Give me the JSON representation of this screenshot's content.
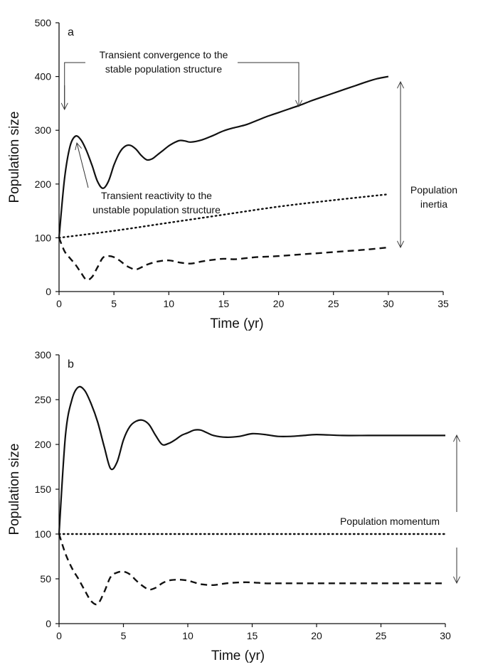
{
  "chart_data": [
    {
      "type": "line",
      "panel_label": "a",
      "xlabel": "Time (yr)",
      "ylabel": "Population size",
      "xlim": [
        0,
        35
      ],
      "ylim": [
        0,
        500
      ],
      "xticks": [
        0,
        5,
        10,
        15,
        20,
        25,
        30,
        35
      ],
      "yticks": [
        0,
        100,
        200,
        300,
        400,
        500
      ],
      "grid": false,
      "series": [
        {
          "style": "solid",
          "x": [
            0,
            0.5,
            1,
            1.5,
            2,
            2.5,
            3,
            3.5,
            4,
            4.5,
            5,
            5.5,
            6,
            6.5,
            7,
            7.5,
            8,
            8.5,
            9,
            9.5,
            10,
            10.5,
            11,
            11.5,
            12,
            13,
            14,
            15,
            16,
            17,
            18,
            19,
            20,
            21,
            22,
            23,
            24,
            25,
            26,
            27,
            28,
            29,
            30
          ],
          "y": [
            100,
            210,
            270,
            289,
            282,
            262,
            235,
            205,
            192,
            205,
            235,
            258,
            270,
            272,
            265,
            253,
            245,
            247,
            255,
            263,
            271,
            277,
            281,
            280,
            278,
            282,
            290,
            299,
            305,
            310,
            318,
            326,
            333,
            340,
            347,
            355,
            362,
            369,
            376,
            383,
            390,
            396,
            400
          ]
        },
        {
          "style": "dotted",
          "x": [
            0,
            5,
            10,
            15,
            20,
            25,
            30
          ],
          "y": [
            100,
            113,
            128,
            143,
            158,
            170,
            181
          ]
        },
        {
          "style": "dashed",
          "x": [
            0,
            0.5,
            1,
            1.5,
            2,
            2.5,
            3,
            3.5,
            4,
            4.5,
            5,
            5.5,
            6,
            6.5,
            7,
            7.5,
            8,
            9,
            10,
            11,
            12,
            13,
            14,
            15,
            16,
            17,
            18,
            19,
            20,
            22,
            24,
            26,
            28,
            30
          ],
          "y": [
            100,
            75,
            62,
            50,
            35,
            22,
            27,
            45,
            63,
            66,
            64,
            58,
            50,
            44,
            41,
            45,
            50,
            56,
            58,
            54,
            52,
            56,
            59,
            61,
            60,
            62,
            64,
            65,
            66,
            69,
            72,
            75,
            78,
            82
          ]
        }
      ],
      "annotations": [
        {
          "lines": [
            "Transient convergence to the",
            "stable population structure"
          ]
        },
        {
          "lines": [
            "Transient reactivity to the",
            "unstable population structure"
          ]
        },
        {
          "lines": [
            "Population",
            "inertia"
          ]
        }
      ]
    },
    {
      "type": "line",
      "panel_label": "b",
      "xlabel": "Time (yr)",
      "ylabel": "Population size",
      "xlim": [
        0,
        30
      ],
      "ylim": [
        0,
        300
      ],
      "xticks": [
        0,
        5,
        10,
        15,
        20,
        25,
        30
      ],
      "yticks": [
        0,
        50,
        100,
        150,
        200,
        250,
        300
      ],
      "grid": false,
      "series": [
        {
          "style": "solid",
          "x": [
            0,
            0.5,
            1,
            1.5,
            2,
            2.5,
            3,
            3.5,
            4,
            4.5,
            5,
            5.5,
            6,
            6.5,
            7,
            7.5,
            8,
            8.5,
            9,
            9.5,
            10,
            10.5,
            11,
            11.5,
            12,
            13,
            14,
            15,
            16,
            17,
            18,
            19,
            20,
            22,
            24,
            26,
            28,
            30
          ],
          "y": [
            100,
            210,
            250,
            264,
            260,
            245,
            225,
            198,
            173,
            180,
            205,
            220,
            226,
            227,
            222,
            210,
            200,
            201,
            205,
            210,
            213,
            216,
            216,
            213,
            210,
            208,
            209,
            212,
            211,
            209,
            209,
            210,
            211,
            210,
            210,
            210,
            210,
            210
          ]
        },
        {
          "style": "dotted",
          "x": [
            0,
            30
          ],
          "y": [
            100,
            100
          ]
        },
        {
          "style": "dashed",
          "x": [
            0,
            0.5,
            1,
            1.5,
            2,
            2.5,
            3,
            3.5,
            4,
            4.5,
            5,
            5.5,
            6,
            6.5,
            7,
            7.5,
            8,
            8.5,
            9,
            9.5,
            10,
            10.5,
            11,
            12,
            13,
            14,
            15,
            16,
            17,
            18,
            20,
            22,
            24,
            26,
            28,
            30
          ],
          "y": [
            100,
            78,
            62,
            50,
            37,
            25,
            22,
            35,
            52,
            57,
            58,
            55,
            48,
            42,
            38,
            40,
            45,
            48,
            49,
            49,
            48,
            46,
            44,
            43,
            45,
            46,
            46,
            45,
            45,
            45,
            45,
            45,
            45,
            45,
            45,
            45
          ]
        }
      ],
      "annotations": [
        {
          "lines": [
            "Population momentum"
          ]
        }
      ]
    }
  ]
}
